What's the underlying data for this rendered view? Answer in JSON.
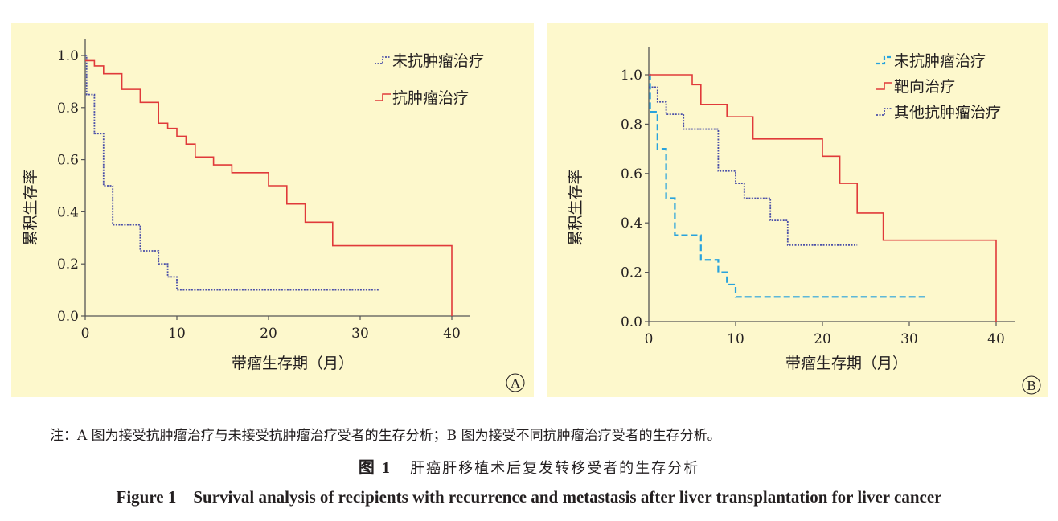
{
  "chart_data": [
    {
      "type": "line",
      "step": true,
      "panel_label": "A",
      "xlabel": "带瘤生存期（月）",
      "ylabel": "累积生存率",
      "xlim": [
        0,
        42
      ],
      "ylim": [
        0,
        1.06
      ],
      "xticks": [
        0,
        10,
        20,
        30,
        40
      ],
      "yticks": [
        "0.0",
        "0.2",
        "0.4",
        "0.6",
        "0.8",
        "1.0"
      ],
      "legend_position": "top-right",
      "series": [
        {
          "name": "未抗肿瘤治疗",
          "color": "#4a4fa8",
          "style": "dotted",
          "x": [
            0,
            0.15,
            1,
            2,
            3,
            6,
            8,
            9,
            10,
            32
          ],
          "y": [
            1.0,
            0.85,
            0.7,
            0.5,
            0.35,
            0.25,
            0.2,
            0.15,
            0.1,
            0.1
          ]
        },
        {
          "name": "抗肿瘤治疗",
          "color": "#e03a3a",
          "style": "solid",
          "x": [
            0,
            1,
            2,
            4,
            6,
            8,
            9,
            10,
            11,
            12,
            14,
            16,
            20,
            22,
            24,
            27,
            40,
            40
          ],
          "y": [
            0.98,
            0.96,
            0.93,
            0.87,
            0.82,
            0.74,
            0.72,
            0.69,
            0.66,
            0.61,
            0.58,
            0.55,
            0.5,
            0.43,
            0.36,
            0.27,
            0.27,
            0.0
          ]
        }
      ]
    },
    {
      "type": "line",
      "step": true,
      "panel_label": "B",
      "xlabel": "带瘤生存期（月）",
      "ylabel": "累积生存率",
      "xlim": [
        0,
        42
      ],
      "ylim": [
        0,
        1.06
      ],
      "xticks": [
        0,
        10,
        20,
        30,
        40
      ],
      "yticks": [
        "0.0",
        "0.2",
        "0.4",
        "0.6",
        "0.8",
        "1.0"
      ],
      "legend_position": "top-right",
      "series": [
        {
          "name": "未抗肿瘤治疗",
          "color": "#29a3dc",
          "style": "dashed",
          "x": [
            0,
            0.15,
            1,
            2,
            3,
            6,
            8,
            9,
            10,
            32
          ],
          "y": [
            1.0,
            0.85,
            0.7,
            0.5,
            0.35,
            0.25,
            0.2,
            0.15,
            0.1,
            0.1
          ]
        },
        {
          "name": "靶向治疗",
          "color": "#e03a3a",
          "style": "solid",
          "x": [
            0,
            5,
            6,
            9,
            12,
            20,
            22,
            24,
            27,
            40,
            40
          ],
          "y": [
            1.0,
            0.96,
            0.88,
            0.83,
            0.74,
            0.67,
            0.56,
            0.44,
            0.33,
            0.33,
            0.0
          ]
        },
        {
          "name": "其他抗肿瘤治疗",
          "color": "#4a4fa8",
          "style": "dotted",
          "x": [
            0,
            0.5,
            1,
            2,
            4,
            8,
            10,
            11,
            14,
            16,
            24
          ],
          "y": [
            0.95,
            0.95,
            0.89,
            0.84,
            0.78,
            0.61,
            0.56,
            0.5,
            0.41,
            0.31,
            0.31
          ]
        }
      ]
    }
  ],
  "captions": {
    "note": "注：A 图为接受抗肿瘤治疗与未接受抗肿瘤治疗受者的生存分析；B 图为接受不同抗肿瘤治疗受者的生存分析。",
    "figure_zh_label": "图 1",
    "figure_zh_text": "肝癌肝移植术后复发转移受者的生存分析",
    "figure_en": "Figure 1    Survival analysis of recipients with recurrence and metastasis after liver transplantation for liver cancer"
  }
}
